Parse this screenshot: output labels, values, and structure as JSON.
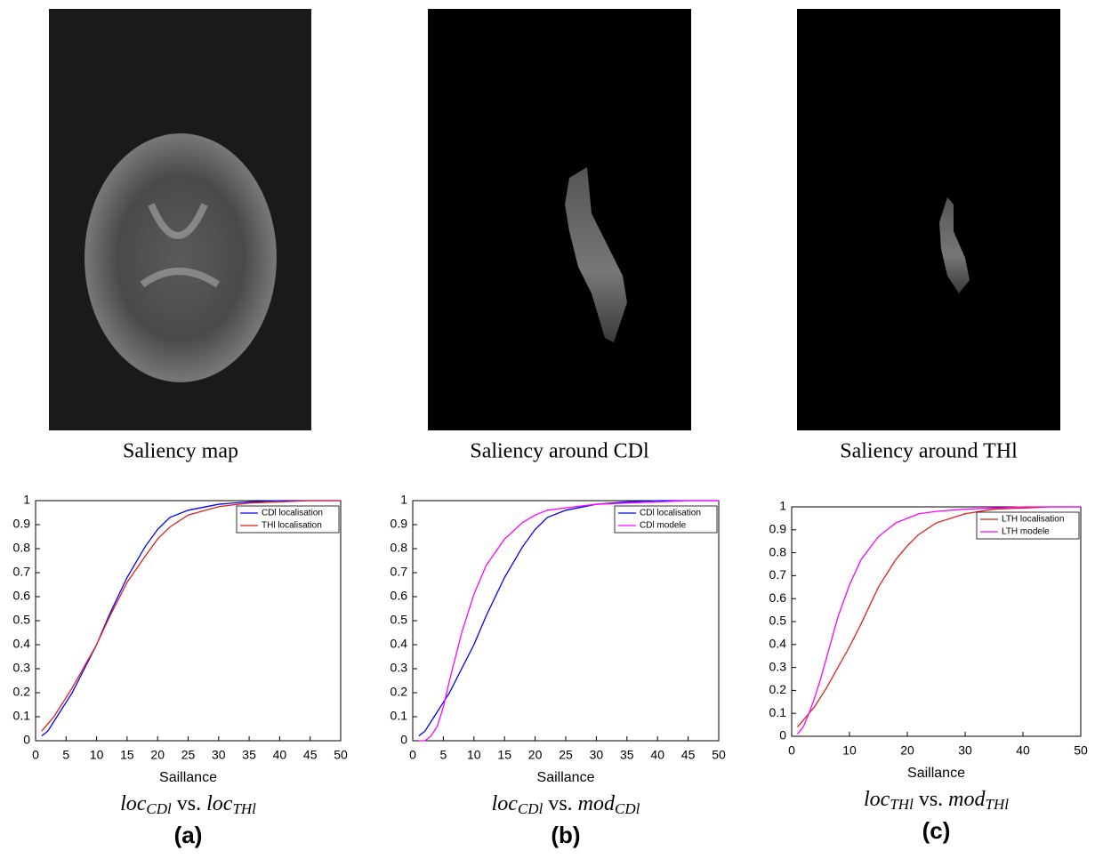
{
  "panels": [
    {
      "caption": "Saliency map"
    },
    {
      "caption": "Saliency around CDl"
    },
    {
      "caption": "Saliency around THl"
    }
  ],
  "chart_data": [
    {
      "type": "line",
      "xlabel": "Saillance",
      "label": "(a)",
      "caption": {
        "base1": "loc",
        "sub1": "CDl",
        "mid": "vs.",
        "base2": "loc",
        "sub2": "THl"
      },
      "x": [
        1,
        2,
        3,
        4,
        5,
        6,
        8,
        10,
        12,
        15,
        18,
        20,
        22,
        25,
        30,
        35,
        40,
        45,
        50
      ],
      "series": [
        {
          "name": "CDl localisation",
          "color": "#0000ff",
          "values": [
            0.02,
            0.04,
            0.08,
            0.12,
            0.16,
            0.2,
            0.3,
            0.4,
            0.52,
            0.68,
            0.81,
            0.88,
            0.93,
            0.96,
            0.985,
            0.995,
            1,
            1,
            1
          ]
        },
        {
          "name": "THl localisation",
          "color": "#e0201b",
          "values": [
            0.04,
            0.07,
            0.1,
            0.14,
            0.18,
            0.22,
            0.31,
            0.4,
            0.51,
            0.66,
            0.77,
            0.84,
            0.89,
            0.94,
            0.975,
            0.99,
            0.995,
            1,
            1
          ]
        }
      ],
      "xlim": [
        0,
        50
      ],
      "xticks": [
        0,
        5,
        10,
        15,
        20,
        25,
        30,
        35,
        40,
        45,
        50
      ],
      "ylim": [
        0,
        1
      ],
      "yticks": [
        0,
        0.1,
        0.2,
        0.3,
        0.4,
        0.5,
        0.6,
        0.7,
        0.8,
        0.9,
        1
      ]
    },
    {
      "type": "line",
      "xlabel": "Saillance",
      "label": "(b)",
      "caption": {
        "base1": "loc",
        "sub1": "CDl",
        "mid": "vs.",
        "base2": "mod",
        "sub2": "CDl"
      },
      "x": [
        1,
        2,
        3,
        4,
        5,
        6,
        8,
        10,
        12,
        15,
        18,
        20,
        22,
        25,
        30,
        35,
        40,
        45,
        50
      ],
      "series": [
        {
          "name": "CDl localisation",
          "color": "#0000ff",
          "values": [
            0.02,
            0.04,
            0.08,
            0.12,
            0.16,
            0.2,
            0.3,
            0.4,
            0.52,
            0.68,
            0.81,
            0.88,
            0.93,
            0.96,
            0.985,
            0.995,
            1,
            1,
            1
          ]
        },
        {
          "name": "CDl modele",
          "color": "#ff00ff",
          "values": [
            0,
            0,
            0.02,
            0.06,
            0.14,
            0.25,
            0.45,
            0.61,
            0.73,
            0.84,
            0.91,
            0.94,
            0.96,
            0.97,
            0.985,
            0.99,
            0.995,
            1,
            1
          ]
        }
      ],
      "xlim": [
        0,
        50
      ],
      "xticks": [
        0,
        5,
        10,
        15,
        20,
        25,
        30,
        35,
        40,
        45,
        50
      ],
      "ylim": [
        0,
        1
      ],
      "yticks": [
        0,
        0.1,
        0.2,
        0.3,
        0.4,
        0.5,
        0.6,
        0.7,
        0.8,
        0.9,
        1
      ]
    },
    {
      "type": "line",
      "xlabel": "Saillance",
      "label": "(c)",
      "caption": {
        "base1": "loc",
        "sub1": "THl",
        "mid": "vs.",
        "base2": "mod",
        "sub2": "THl"
      },
      "x": [
        1,
        2,
        3,
        4,
        5,
        6,
        8,
        10,
        12,
        15,
        18,
        20,
        22,
        25,
        30,
        35,
        40,
        45,
        50
      ],
      "series": [
        {
          "name": "LTH localisation",
          "color": "#e0201b",
          "values": [
            0.04,
            0.07,
            0.1,
            0.13,
            0.17,
            0.21,
            0.3,
            0.39,
            0.49,
            0.65,
            0.77,
            0.83,
            0.88,
            0.93,
            0.97,
            0.99,
            0.995,
            1,
            1
          ]
        },
        {
          "name": "LTH modele",
          "color": "#ff00ff",
          "values": [
            0.01,
            0.04,
            0.1,
            0.17,
            0.25,
            0.34,
            0.52,
            0.66,
            0.77,
            0.87,
            0.93,
            0.95,
            0.97,
            0.98,
            0.99,
            0.995,
            1,
            1,
            1
          ]
        }
      ],
      "xlim": [
        0,
        50
      ],
      "xticks": [
        0,
        10,
        20,
        30,
        40,
        50
      ],
      "ylim": [
        0,
        1
      ],
      "yticks": [
        0,
        0.1,
        0.2,
        0.3,
        0.4,
        0.5,
        0.6,
        0.7,
        0.8,
        0.9,
        1
      ]
    }
  ]
}
